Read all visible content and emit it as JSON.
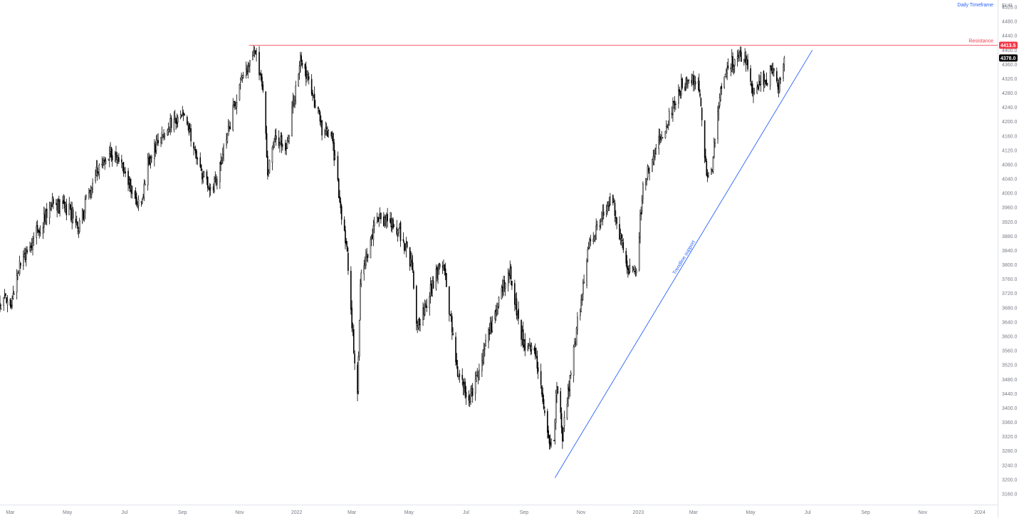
{
  "chart_data": {
    "type": "candlestick",
    "timeframe_label": "Daily Timeframe",
    "currency": "EUR",
    "ylim": [
      3130,
      4540
    ],
    "y_ticks": [
      3160,
      3200,
      3240,
      3280,
      3320,
      3360,
      3400,
      3440,
      3480,
      3520,
      3560,
      3600,
      3640,
      3680,
      3720,
      3760,
      3800,
      3840,
      3880,
      3920,
      3960,
      4000,
      4040,
      4080,
      4120,
      4160,
      4200,
      4240,
      4280,
      4320,
      4360,
      4400,
      4440,
      4480,
      4520
    ],
    "x_range": [
      "2021-02-18",
      "2024-01-20"
    ],
    "x_ticks": [
      {
        "date": "2021-03-01",
        "label": "Mar"
      },
      {
        "date": "2021-05-01",
        "label": "May"
      },
      {
        "date": "2021-07-01",
        "label": "Jul"
      },
      {
        "date": "2021-09-01",
        "label": "Sep"
      },
      {
        "date": "2021-11-01",
        "label": "Nov"
      },
      {
        "date": "2022-01-01",
        "label": "2022"
      },
      {
        "date": "2022-03-01",
        "label": "Mar"
      },
      {
        "date": "2022-05-01",
        "label": "May"
      },
      {
        "date": "2022-07-01",
        "label": "Jul"
      },
      {
        "date": "2022-09-01",
        "label": "Sep"
      },
      {
        "date": "2022-11-01",
        "label": "Nov"
      },
      {
        "date": "2023-01-01",
        "label": "2023"
      },
      {
        "date": "2023-03-01",
        "label": "Mar"
      },
      {
        "date": "2023-05-01",
        "label": "May"
      },
      {
        "date": "2023-07-01",
        "label": "Jul"
      },
      {
        "date": "2023-09-01",
        "label": "Sep"
      },
      {
        "date": "2023-11-01",
        "label": "Nov"
      },
      {
        "date": "2024-01-01",
        "label": "2024"
      }
    ],
    "price_path": [
      [
        "2021-02-18",
        3700
      ],
      [
        "2021-03-01",
        3690
      ],
      [
        "2021-03-12",
        3800
      ],
      [
        "2021-03-31",
        3900
      ],
      [
        "2021-04-15",
        3970
      ],
      [
        "2021-05-04",
        3950
      ],
      [
        "2021-05-13",
        3900
      ],
      [
        "2021-05-28",
        4040
      ],
      [
        "2021-06-15",
        4120
      ],
      [
        "2021-06-28",
        4070
      ],
      [
        "2021-07-08",
        4020
      ],
      [
        "2021-07-19",
        3960
      ],
      [
        "2021-07-26",
        4080
      ],
      [
        "2021-08-10",
        4170
      ],
      [
        "2021-08-23",
        4200
      ],
      [
        "2021-09-03",
        4220
      ],
      [
        "2021-09-20",
        4060
      ],
      [
        "2021-10-04",
        4010
      ],
      [
        "2021-10-20",
        4180
      ],
      [
        "2021-11-03",
        4320
      ],
      [
        "2021-11-17",
        4410
      ],
      [
        "2021-11-26",
        4300
      ],
      [
        "2021-12-01",
        4050
      ],
      [
        "2021-12-10",
        4170
      ],
      [
        "2021-12-20",
        4110
      ],
      [
        "2022-01-05",
        4380
      ],
      [
        "2022-01-18",
        4280
      ],
      [
        "2022-01-28",
        4180
      ],
      [
        "2022-02-08",
        4150
      ],
      [
        "2022-02-24",
        3820
      ],
      [
        "2022-03-07",
        3420
      ],
      [
        "2022-03-10",
        3760
      ],
      [
        "2022-03-29",
        3940
      ],
      [
        "2022-04-20",
        3900
      ],
      [
        "2022-05-04",
        3800
      ],
      [
        "2022-05-10",
        3620
      ],
      [
        "2022-05-31",
        3780
      ],
      [
        "2022-06-07",
        3800
      ],
      [
        "2022-06-22",
        3500
      ],
      [
        "2022-07-05",
        3420
      ],
      [
        "2022-07-20",
        3560
      ],
      [
        "2022-08-16",
        3790
      ],
      [
        "2022-08-31",
        3580
      ],
      [
        "2022-09-13",
        3560
      ],
      [
        "2022-09-23",
        3370
      ],
      [
        "2022-09-29",
        3300
      ],
      [
        "2022-10-03",
        3320
      ],
      [
        "2022-10-06",
        3480
      ],
      [
        "2022-10-12",
        3320
      ],
      [
        "2022-10-27",
        3620
      ],
      [
        "2022-11-10",
        3860
      ],
      [
        "2022-11-30",
        3980
      ],
      [
        "2022-12-06",
        3960
      ],
      [
        "2022-12-20",
        3790
      ],
      [
        "2022-12-30",
        3800
      ],
      [
        "2023-01-06",
        4020
      ],
      [
        "2023-01-24",
        4150
      ],
      [
        "2023-02-16",
        4300
      ],
      [
        "2023-03-06",
        4320
      ],
      [
        "2023-03-15",
        4050
      ],
      [
        "2023-03-20",
        4060
      ],
      [
        "2023-03-31",
        4300
      ],
      [
        "2023-04-14",
        4380
      ],
      [
        "2023-04-24",
        4390
      ],
      [
        "2023-05-03",
        4290
      ],
      [
        "2023-05-12",
        4320
      ],
      [
        "2023-05-18",
        4300
      ],
      [
        "2023-05-23",
        4360
      ],
      [
        "2023-05-31",
        4300
      ],
      [
        "2023-06-06",
        4378
      ]
    ],
    "resistance": {
      "label": "Resistance",
      "value": 4413.5,
      "from": "2021-11-11"
    },
    "trendline": {
      "label": "Trendline support",
      "start": [
        "2022-10-04",
        3205
      ],
      "end": [
        "2023-07-06",
        4400
      ]
    },
    "last_price": 4378.0,
    "resistance_tag": "4413.5",
    "last_price_tag": "4378.0",
    "colors": {
      "candle": "#000000",
      "resistance": "#f23645",
      "trendline": "#2962ff",
      "axis_text": "#787b86",
      "timeframe": "#2962ff",
      "last_price_bg": "#000000"
    }
  }
}
